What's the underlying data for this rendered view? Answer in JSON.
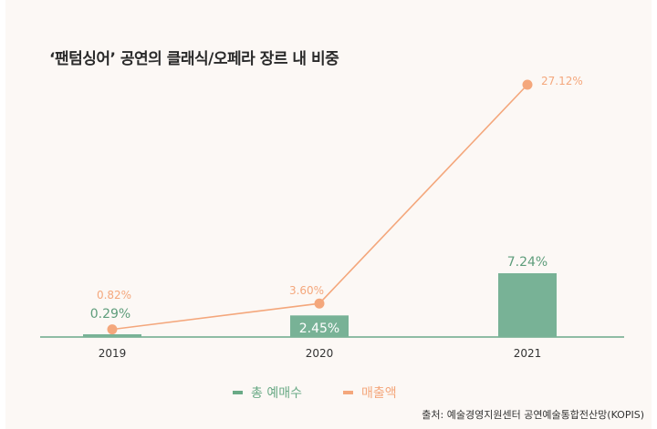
{
  "title": "‘팬텀싱어’ 공연의 클래식/오페라 장르 내 비중",
  "chart_data": {
    "type": "bar+line",
    "categories": [
      "2019",
      "2020",
      "2021"
    ],
    "series": [
      {
        "name": "총 예매수",
        "type": "bar",
        "values": [
          0.29,
          2.45,
          7.24
        ],
        "labels": [
          "0.29%",
          "2.45%",
          "7.24%"
        ],
        "color": "#78b296"
      },
      {
        "name": "매출액",
        "type": "line",
        "values": [
          0.82,
          3.6,
          27.12
        ],
        "labels": [
          "0.82%",
          "3.60%",
          "27.12%"
        ],
        "color": "#f4a77c"
      }
    ],
    "ylim": [
      0,
      30
    ],
    "grid": false,
    "legend_position": "bottom"
  },
  "legend": [
    {
      "label": "총 예매수",
      "color": "#6aaa86"
    },
    {
      "label": "매출액",
      "color": "#f4a77c"
    }
  ],
  "source": "출처: 예술경영지원센터 공연예술통합전산망(KOPIS)"
}
